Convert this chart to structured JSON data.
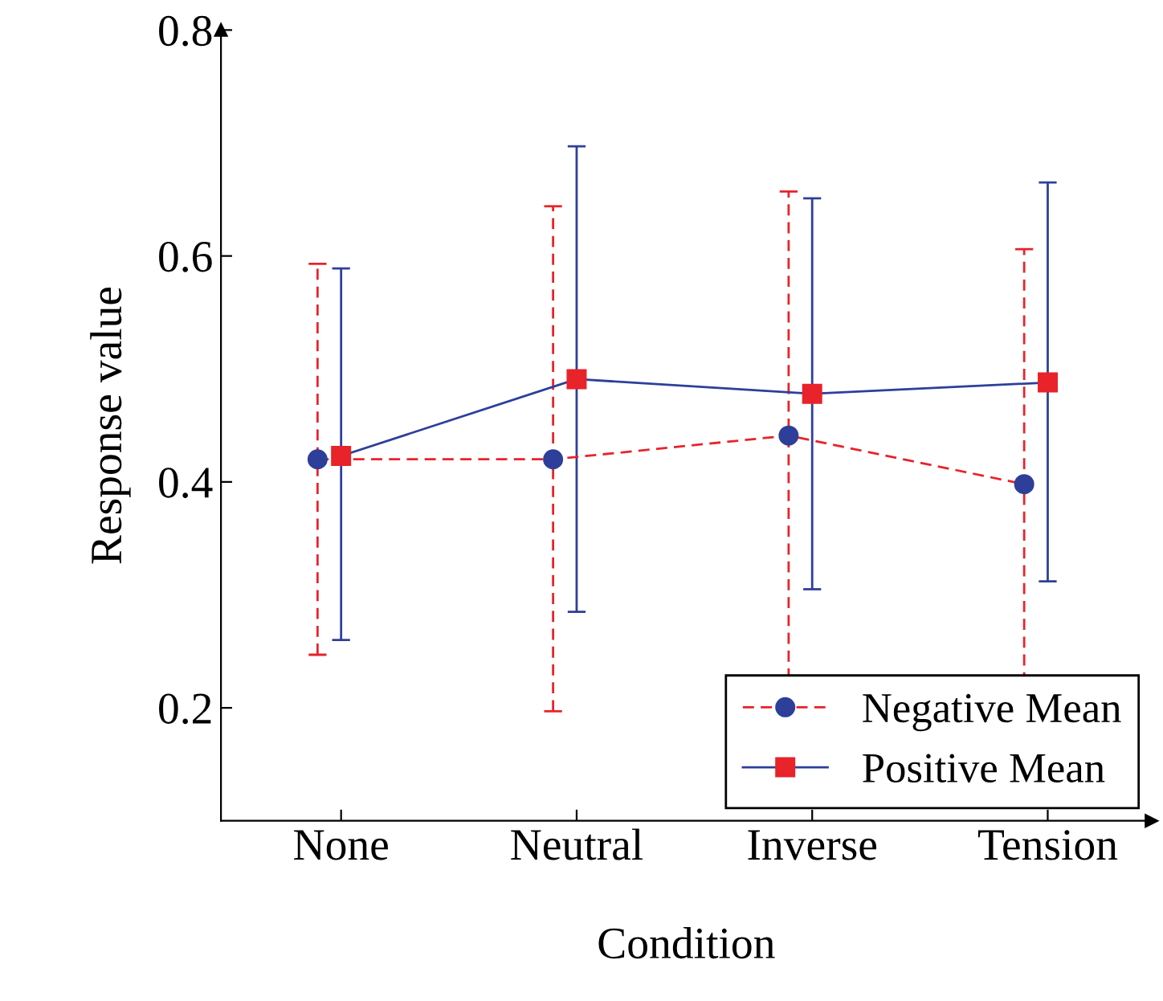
{
  "chart_data": {
    "type": "line",
    "xlabel": "Condition",
    "ylabel": "Response value",
    "categories": [
      "None",
      "Neutral",
      "Inverse",
      "Tension"
    ],
    "ylim": [
      0.1,
      0.8
    ],
    "yticks": [
      {
        "value": 0.2,
        "label": "0.2"
      },
      {
        "value": 0.4,
        "label": "0.4"
      },
      {
        "value": 0.6,
        "label": "0.6"
      },
      {
        "value": 0.8,
        "label": "0.8"
      }
    ],
    "grid": false,
    "legend": "bottom right",
    "series": [
      {
        "name": "Negative Mean",
        "color": "#e8232a",
        "marker": "circle",
        "line_style": "dashed",
        "values": [
          0.42,
          0.42,
          0.441,
          0.398
        ],
        "errors": [
          [
            0.247,
            0.593
          ],
          [
            0.197,
            0.644
          ],
          [
            0.225,
            0.657
          ],
          [
            0.19,
            0.606
          ]
        ]
      },
      {
        "name": "Positive Mean",
        "color": "#2e3f9a",
        "marker": "square",
        "line_style": "solid",
        "values": [
          0.423,
          0.491,
          0.478,
          0.488
        ],
        "errors": [
          [
            0.26,
            0.589
          ],
          [
            0.285,
            0.697
          ],
          [
            0.305,
            0.651
          ],
          [
            0.312,
            0.665
          ]
        ]
      }
    ]
  }
}
